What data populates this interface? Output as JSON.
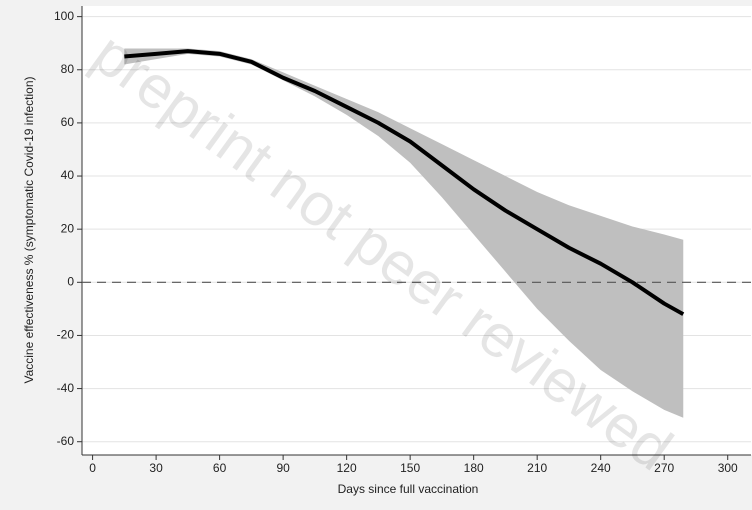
{
  "chart_data": {
    "type": "line",
    "watermark": "preprint not peer reviewed",
    "xlabel": "Days since full vaccination",
    "ylabel": "Vaccine effectiveness % (symptomatic Covid-19 infection)",
    "x": [
      15,
      30,
      45,
      60,
      75,
      90,
      105,
      120,
      135,
      150,
      165,
      180,
      195,
      210,
      225,
      240,
      255,
      270,
      279
    ],
    "values": [
      85,
      86,
      87,
      86,
      83,
      77,
      72,
      66,
      60,
      53,
      44,
      35,
      27,
      20,
      13,
      7,
      0,
      -8,
      -12
    ],
    "ci_lower": [
      82,
      84,
      86,
      85,
      82,
      76,
      70,
      63,
      55,
      45,
      32,
      18,
      4,
      -10,
      -22,
      -33,
      -41,
      -48,
      -51
    ],
    "ci_upper": [
      88,
      88,
      88,
      87,
      84,
      79,
      74,
      69,
      64,
      58,
      52,
      46,
      40,
      34,
      29,
      25,
      21,
      18,
      16
    ],
    "color": "#000000",
    "band_color": "#bfbfbf",
    "hline": 0,
    "xlim": [
      -5,
      311
    ],
    "ylim": [
      -65,
      104
    ],
    "xticks": [
      0,
      30,
      60,
      90,
      120,
      150,
      180,
      210,
      240,
      270,
      300
    ],
    "yticks": [
      -60,
      -40,
      -20,
      0,
      20,
      40,
      60,
      80,
      100
    ],
    "grid": true
  }
}
